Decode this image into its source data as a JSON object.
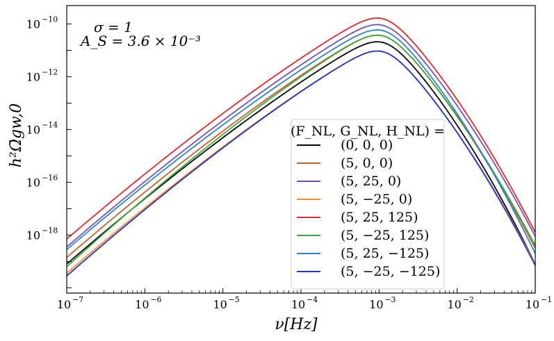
{
  "chart_data": {
    "type": "line",
    "xscale": "log",
    "yscale": "log",
    "xlim_exp": [
      -7,
      -1
    ],
    "ylim_exp": [
      -20.2,
      -9.3
    ],
    "xticks": [
      {
        "base": "10",
        "exp": "−7",
        "value": -7
      },
      {
        "base": "10",
        "exp": "−6",
        "value": -6
      },
      {
        "base": "10",
        "exp": "−5",
        "value": -5
      },
      {
        "base": "10",
        "exp": "−4",
        "value": -4
      },
      {
        "base": "10",
        "exp": "−3",
        "value": -3
      },
      {
        "base": "10",
        "exp": "−2",
        "value": -2
      },
      {
        "base": "10",
        "exp": "−1",
        "value": -1
      }
    ],
    "yticks": [
      {
        "base": "10",
        "exp": "−10",
        "value": -10
      },
      {
        "base": "10",
        "exp": "−12",
        "value": -12
      },
      {
        "base": "10",
        "exp": "−14",
        "value": -14
      },
      {
        "base": "10",
        "exp": "−16",
        "value": -16
      },
      {
        "base": "10",
        "exp": "−18",
        "value": -18
      }
    ],
    "xlabel": "ν[Hz]",
    "ylabel": "h²Ω̄gw,0",
    "annotations": {
      "sigma": "σ = 1",
      "amplitude": "A_S = 3.6 × 10⁻³"
    },
    "legend": {
      "title": "(F_NL, G_NL, H_NL) =",
      "placement": "lower-center-right"
    },
    "series": [
      {
        "name": "(0,  0,  0)",
        "color": "#000000",
        "peak_log10": -10.7,
        "low_end_log10": -19.1,
        "high_end_log10": -19.1
      },
      {
        "name": "(5,  0,  0)",
        "color": "#c8602e",
        "peak_log10": -10.45,
        "low_end_log10": -18.85,
        "high_end_log10": -18.5
      },
      {
        "name": "(5,  25,  0)",
        "color": "#7550b0",
        "peak_log10": -10.05,
        "low_end_log10": -18.45,
        "high_end_log10": -18.05
      },
      {
        "name": "(5,  −25,  0)",
        "color": "#ff8c1a",
        "peak_log10": -11.05,
        "low_end_log10": -19.45,
        "high_end_log10": -19.1
      },
      {
        "name": "(5,  25,  125)",
        "color": "#e02828",
        "peak_log10": -9.8,
        "low_end_log10": -18.15,
        "high_end_log10": -17.9
      },
      {
        "name": "(5,  −25,  125)",
        "color": "#3daa3d",
        "peak_log10": -10.45,
        "low_end_log10": -19.2,
        "high_end_log10": -18.4
      },
      {
        "name": "(5,  25,  −125)",
        "color": "#2a85c8",
        "peak_log10": -10.25,
        "low_end_log10": -18.55,
        "high_end_log10": -18.7
      },
      {
        "name": "(5,  −25,  −125)",
        "color": "#1a35d8",
        "peak_log10": -11.05,
        "low_end_log10": -19.55,
        "high_end_log10": -19.15
      }
    ]
  }
}
